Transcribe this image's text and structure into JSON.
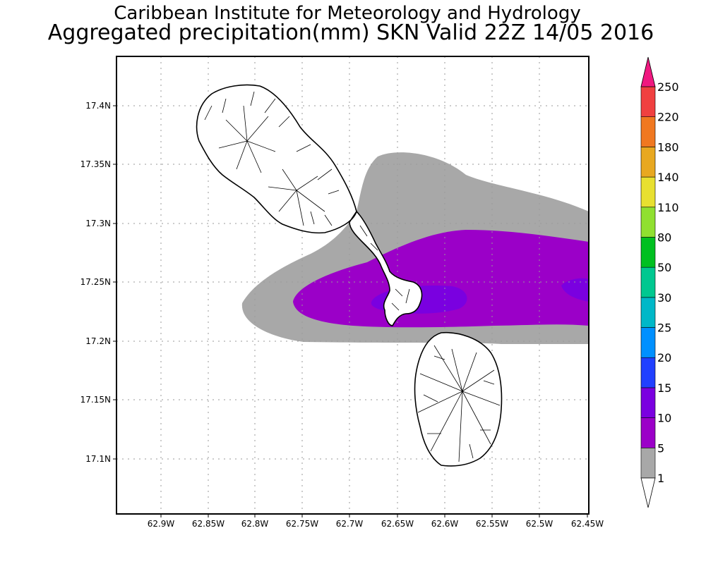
{
  "title": {
    "line1": "Caribbean Institute for Meteorology and Hydrology",
    "line2": "Aggregated precipitation(mm) SKN Valid 22Z 14/05 2016"
  },
  "axes": {
    "lat_ticks": [
      "17.4N",
      "17.35N",
      "17.3N",
      "17.25N",
      "17.2N",
      "17.15N",
      "17.1N"
    ],
    "lon_ticks": [
      "62.9W",
      "62.85W",
      "62.8W",
      "62.75W",
      "62.7W",
      "62.65W",
      "62.6W",
      "62.55W",
      "62.5W",
      "62.45W"
    ]
  },
  "legend": {
    "labels": [
      "1",
      "5",
      "10",
      "15",
      "20",
      "25",
      "30",
      "50",
      "80",
      "110",
      "140",
      "180",
      "220",
      "250"
    ],
    "colors": [
      "#a8a8a8",
      "#9b00c8",
      "#7a00e0",
      "#2040ff",
      "#0090ff",
      "#00b8c8",
      "#00c890",
      "#00c020",
      "#90e030",
      "#e8e030",
      "#e8a820",
      "#f07820",
      "#f04040",
      "#f01880"
    ]
  },
  "layers": {
    "precip_1_5mm": "#a8a8a8",
    "precip_5_10mm": "#9b00c8",
    "precip_10_15mm": "#7a00e0"
  },
  "map_features": [
    "St. Kitts island",
    "Nevis island"
  ]
}
